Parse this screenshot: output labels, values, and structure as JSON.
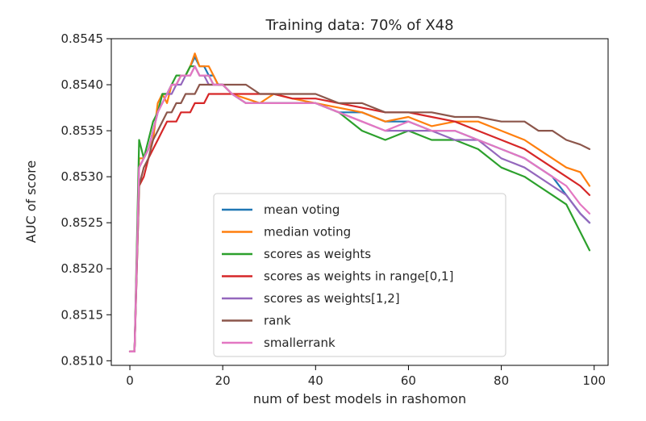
{
  "chart_data": {
    "type": "line",
    "title": "Training data: 70% of X48",
    "xlabel": "num of best models in rashomon",
    "ylabel": "AUC of score",
    "xlim": [
      -4,
      103
    ],
    "ylim": [
      0.85095,
      0.8545
    ],
    "xticks": [
      0,
      20,
      40,
      60,
      80,
      100
    ],
    "xtick_labels": [
      "0",
      "20",
      "40",
      "60",
      "80",
      "100"
    ],
    "yticks": [
      0.851,
      0.8515,
      0.852,
      0.8525,
      0.853,
      0.8535,
      0.854,
      0.8545
    ],
    "ytick_labels": [
      "0.8510",
      "0.8515",
      "0.8520",
      "0.8525",
      "0.8530",
      "0.8535",
      "0.8540",
      "0.8545"
    ],
    "grid": false,
    "legend_position": "lower-center",
    "series": [
      {
        "name": "mean voting",
        "color": "#1f77b4",
        "x": [
          0,
          1,
          2,
          3,
          4,
          5,
          6,
          7,
          8,
          9,
          10,
          11,
          12,
          13,
          14,
          15,
          16,
          17,
          18,
          19,
          20,
          22,
          25,
          28,
          31,
          35,
          40,
          45,
          50,
          55,
          60,
          65,
          70,
          75,
          80,
          85,
          88,
          91,
          94,
          97,
          99
        ],
        "y": [
          0.8511,
          0.8511,
          0.8531,
          0.8532,
          0.8533,
          0.8535,
          0.8537,
          0.8539,
          0.8539,
          0.854,
          0.854,
          0.8541,
          0.8541,
          0.8542,
          0.8543,
          0.8542,
          0.8542,
          0.8541,
          0.8541,
          0.854,
          0.854,
          0.8539,
          0.8538,
          0.8538,
          0.8538,
          0.8538,
          0.8538,
          0.8537,
          0.8537,
          0.8536,
          0.8536,
          0.8535,
          0.8535,
          0.8534,
          0.8533,
          0.8532,
          0.8531,
          0.853,
          0.8528,
          0.8526,
          0.8525
        ]
      },
      {
        "name": "median voting",
        "color": "#ff7f0e",
        "x": [
          0,
          1,
          2,
          3,
          4,
          5,
          6,
          7,
          8,
          9,
          10,
          11,
          12,
          13,
          14,
          15,
          16,
          17,
          18,
          19,
          20,
          22,
          25,
          28,
          31,
          35,
          40,
          45,
          50,
          55,
          60,
          65,
          70,
          75,
          80,
          85,
          88,
          91,
          94,
          97,
          99
        ],
        "y": [
          0.8511,
          0.8511,
          0.8532,
          0.8532,
          0.8533,
          0.8534,
          0.8538,
          0.8539,
          0.8538,
          0.854,
          0.854,
          0.8541,
          0.8541,
          0.8542,
          0.85434,
          0.8542,
          0.8542,
          0.8542,
          0.8541,
          0.854,
          0.854,
          0.8539,
          0.85385,
          0.8538,
          0.8539,
          0.85385,
          0.8538,
          0.85375,
          0.8537,
          0.8536,
          0.85365,
          0.85355,
          0.8536,
          0.8536,
          0.8535,
          0.8534,
          0.8533,
          0.8532,
          0.8531,
          0.85305,
          0.8529
        ]
      },
      {
        "name": "scores as weights",
        "color": "#2ca02c",
        "x": [
          0,
          1,
          2,
          3,
          4,
          5,
          6,
          7,
          8,
          9,
          10,
          11,
          12,
          13,
          14,
          15,
          16,
          17,
          18,
          19,
          20,
          22,
          25,
          28,
          31,
          35,
          40,
          45,
          50,
          55,
          60,
          65,
          70,
          75,
          80,
          85,
          88,
          91,
          94,
          97,
          99
        ],
        "y": [
          0.8511,
          0.8511,
          0.8534,
          0.8532,
          0.8534,
          0.8536,
          0.8537,
          0.8539,
          0.8539,
          0.854,
          0.8541,
          0.8541,
          0.8541,
          0.8542,
          0.8542,
          0.8541,
          0.8541,
          0.8541,
          0.854,
          0.854,
          0.854,
          0.8539,
          0.8538,
          0.8538,
          0.8538,
          0.8538,
          0.8538,
          0.8537,
          0.8535,
          0.8534,
          0.8535,
          0.8534,
          0.8534,
          0.8533,
          0.8531,
          0.853,
          0.8529,
          0.8528,
          0.8527,
          0.8524,
          0.8522
        ]
      },
      {
        "name": "scores as weights in range[0,1]",
        "color": "#d62728",
        "x": [
          0,
          1,
          2,
          3,
          4,
          5,
          6,
          7,
          8,
          9,
          10,
          11,
          12,
          13,
          14,
          15,
          16,
          17,
          18,
          19,
          20,
          22,
          25,
          28,
          31,
          35,
          40,
          45,
          50,
          55,
          60,
          65,
          70,
          75,
          80,
          85,
          88,
          91,
          94,
          97,
          99
        ],
        "y": [
          0.8511,
          0.8511,
          0.8529,
          0.853,
          0.8532,
          0.8533,
          0.8534,
          0.8535,
          0.8536,
          0.8536,
          0.8536,
          0.8537,
          0.8537,
          0.8537,
          0.8538,
          0.8538,
          0.8538,
          0.8539,
          0.8539,
          0.8539,
          0.8539,
          0.8539,
          0.8539,
          0.8539,
          0.8539,
          0.85385,
          0.85385,
          0.8538,
          0.85375,
          0.8537,
          0.8537,
          0.85365,
          0.8536,
          0.8535,
          0.8534,
          0.8533,
          0.8532,
          0.8531,
          0.853,
          0.8529,
          0.8528
        ]
      },
      {
        "name": "scores as weights[1,2]",
        "color": "#9467bd",
        "x": [
          0,
          1,
          2,
          3,
          4,
          5,
          6,
          7,
          8,
          9,
          10,
          11,
          12,
          13,
          14,
          15,
          16,
          17,
          18,
          19,
          20,
          22,
          25,
          28,
          31,
          35,
          40,
          45,
          50,
          55,
          60,
          65,
          70,
          75,
          80,
          85,
          88,
          91,
          94,
          97,
          99
        ],
        "y": [
          0.8511,
          0.8511,
          0.8531,
          0.8532,
          0.8533,
          0.8535,
          0.8537,
          0.8538,
          0.8539,
          0.8539,
          0.854,
          0.854,
          0.8541,
          0.8541,
          0.8542,
          0.8541,
          0.8541,
          0.854,
          0.854,
          0.854,
          0.854,
          0.8539,
          0.8538,
          0.8538,
          0.8538,
          0.8538,
          0.8538,
          0.8537,
          0.8536,
          0.8535,
          0.8535,
          0.8535,
          0.8534,
          0.8534,
          0.8532,
          0.8531,
          0.853,
          0.8529,
          0.8528,
          0.8526,
          0.8525
        ]
      },
      {
        "name": "rank",
        "color": "#8c564b",
        "x": [
          0,
          1,
          2,
          3,
          4,
          5,
          6,
          7,
          8,
          9,
          10,
          11,
          12,
          13,
          14,
          15,
          16,
          17,
          18,
          19,
          20,
          22,
          25,
          28,
          31,
          35,
          40,
          45,
          50,
          55,
          60,
          65,
          70,
          75,
          80,
          85,
          88,
          91,
          94,
          97,
          99
        ],
        "y": [
          0.8511,
          0.8511,
          0.8529,
          0.8531,
          0.8532,
          0.8534,
          0.8535,
          0.8536,
          0.8537,
          0.8537,
          0.8538,
          0.8538,
          0.8539,
          0.8539,
          0.8539,
          0.854,
          0.854,
          0.854,
          0.854,
          0.854,
          0.854,
          0.854,
          0.854,
          0.8539,
          0.8539,
          0.8539,
          0.8539,
          0.8538,
          0.8538,
          0.8537,
          0.8537,
          0.8537,
          0.85365,
          0.85365,
          0.8536,
          0.8536,
          0.8535,
          0.8535,
          0.8534,
          0.85335,
          0.8533
        ]
      },
      {
        "name": "smallerrank",
        "color": "#e377c2",
        "x": [
          0,
          1,
          2,
          3,
          4,
          5,
          6,
          7,
          8,
          9,
          10,
          11,
          12,
          13,
          14,
          15,
          16,
          17,
          18,
          19,
          20,
          22,
          25,
          28,
          31,
          35,
          40,
          45,
          50,
          55,
          60,
          65,
          70,
          75,
          80,
          85,
          88,
          91,
          94,
          97,
          99
        ],
        "y": [
          0.8511,
          0.8511,
          0.8531,
          0.8532,
          0.8533,
          0.8535,
          0.8537,
          0.8538,
          0.8539,
          0.854,
          0.854,
          0.8541,
          0.8541,
          0.8541,
          0.8542,
          0.8541,
          0.8541,
          0.8541,
          0.854,
          0.854,
          0.854,
          0.8539,
          0.8538,
          0.8538,
          0.8538,
          0.8538,
          0.8538,
          0.8537,
          0.8536,
          0.8535,
          0.8536,
          0.8535,
          0.8535,
          0.8534,
          0.8533,
          0.8532,
          0.8531,
          0.853,
          0.8529,
          0.8527,
          0.8526
        ]
      }
    ]
  }
}
